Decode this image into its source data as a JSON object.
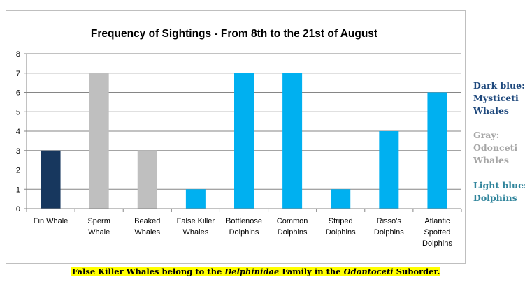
{
  "chart_data": {
    "type": "bar",
    "title": "Frequency of Sightings - From 8th to the 21st of August",
    "xlabel": "",
    "ylabel": "",
    "ylim": [
      0,
      8
    ],
    "yticks": [
      "0",
      "1",
      "2",
      "3",
      "4",
      "5",
      "6",
      "7",
      "8"
    ],
    "grid": true,
    "categories": [
      [
        "Fin Whale"
      ],
      [
        "Sperm",
        "Whale"
      ],
      [
        "Beaked",
        "Whales"
      ],
      [
        "False Killer",
        "Whales"
      ],
      [
        "Bottlenose",
        "Dolphins"
      ],
      [
        "Common",
        "Dolphins"
      ],
      [
        "Striped",
        "Dolphins"
      ],
      [
        "Risso's",
        "Dolphins"
      ],
      [
        "Atlantic",
        "Spotted",
        "Dolphins"
      ]
    ],
    "values": [
      3,
      7,
      3,
      1,
      7,
      7,
      1,
      4,
      6
    ],
    "bar_groups": [
      "mysticeti",
      "odontoceti",
      "odontoceti",
      "dolphins",
      "dolphins",
      "dolphins",
      "dolphins",
      "dolphins",
      "dolphins"
    ],
    "colors": {
      "mysticeti": "#17375e",
      "odontoceti": "#bfbfbf",
      "dolphins": "#00b0f0"
    }
  },
  "legend": {
    "dark_blue": {
      "lines": [
        "Dark blue:",
        "Mysticeti",
        "Whales"
      ],
      "color": "#1f497d"
    },
    "gray": {
      "lines": [
        "Gray:",
        "Odonceti",
        "Whales"
      ],
      "color": "#a6a6a6"
    },
    "light_blue": {
      "lines": [
        "Light blue:",
        "Dolphins"
      ],
      "color": "#31859c"
    }
  },
  "footnote": {
    "part1": "False Killer Whales belong to the ",
    "family": "Delphinidae",
    "part2": " Family in the ",
    "suborder": "Odontoceti",
    "part3": " Suborder."
  }
}
